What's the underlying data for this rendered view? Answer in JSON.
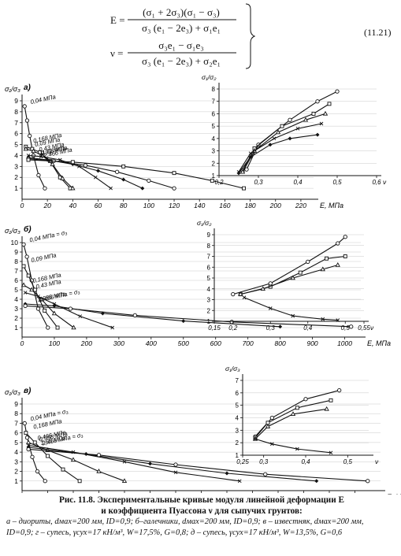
{
  "equation": {
    "lhs_e": "E =",
    "num_e": "(σ₁ + 2σ₃)(σ₁ − σ₃)",
    "den_e": "σ₃ (e₁ − 2e₃) + σ₁e₁",
    "lhs_v": "ν =",
    "num_v": "σ₃e₁ − σ₁e₃",
    "den_v": "σ₃ (e₁ − 2e₃) + σ₂e₁",
    "number": "(11.21)"
  },
  "caption": {
    "title": "Рис. 11.8. Экспериментальные кривые модуля линейной деформации E",
    "title2": "и коэффициента Пуассона ν для сыпучих грунтов:",
    "legend1": "а – диориты, dмах=200 мм, ID=0,9; б–галечники, dмах=200 мм, ID=0,9; в – известняк, dмах=200 мм,",
    "legend2": "ID=0,9; г – супесь, γсух=17 кН/м³, W=17,5%, G=0,8; д – супесь, γсух=17 кН/м³, W=13,5%, G=0,6"
  },
  "chart_data": [
    {
      "type": "line",
      "panel": "а)",
      "ylabel": "σ₁/σ₃",
      "xlabel": "E, МПа",
      "xlim": [
        0,
        230
      ],
      "ylim": [
        0,
        9
      ],
      "xticks": [
        "0",
        "20",
        "40",
        "60",
        "80",
        "100",
        "120",
        "140",
        "160",
        "180",
        "200",
        "220"
      ],
      "yticks": [
        "1",
        "2",
        "3",
        "4",
        "5",
        "6",
        "7",
        "8",
        "9"
      ],
      "series": [
        {
          "name": "0,04 МПа",
          "x": [
            2,
            4,
            6,
            9,
            13,
            18
          ],
          "y": [
            8.5,
            7.2,
            5.8,
            4.0,
            2.2,
            1.0
          ]
        },
        {
          "name": "0,168 МПа",
          "x": [
            3,
            8,
            14,
            22,
            30,
            38
          ],
          "y": [
            4.8,
            4.6,
            4.3,
            3.5,
            2.0,
            1.0
          ]
        },
        {
          "name": "0,09 МПа",
          "x": [
            3,
            9,
            16,
            24,
            32,
            40
          ],
          "y": [
            4.6,
            4.4,
            4.0,
            3.2,
            1.9,
            1.0
          ]
        },
        {
          "name": "0,43 МПа",
          "x": [
            5,
            15,
            30,
            45,
            58,
            70
          ],
          "y": [
            4.0,
            3.9,
            3.6,
            3.0,
            2.0,
            1.0
          ]
        },
        {
          "name": "0,93 МПа",
          "x": [
            5,
            20,
            40,
            60,
            80,
            95
          ],
          "y": [
            3.8,
            3.6,
            3.2,
            2.6,
            1.8,
            1.0
          ]
        },
        {
          "name": "1,68 МПа",
          "x": [
            5,
            25,
            50,
            75,
            100,
            120
          ],
          "y": [
            3.7,
            3.5,
            3.1,
            2.5,
            1.7,
            1.0
          ]
        },
        {
          "name": "2,466 МПа",
          "x": [
            5,
            40,
            80,
            120,
            150,
            175
          ],
          "y": [
            3.6,
            3.4,
            3.0,
            2.4,
            1.7,
            1.0
          ]
        }
      ]
    },
    {
      "type": "line",
      "panel": "а) inset",
      "ylabel": "σ₁/σ₂",
      "xlabel": "ν",
      "xlim": [
        0.2,
        0.6
      ],
      "ylim": [
        1,
        8
      ],
      "xticks": [
        "0,2",
        "0,3",
        "0,4",
        "0,5",
        "0,6"
      ],
      "yticks": [
        "1",
        "2",
        "3",
        "4",
        "5",
        "6",
        "7",
        "8"
      ],
      "series": [
        {
          "x": [
            0.27,
            0.3,
            0.38,
            0.45,
            0.5
          ],
          "y": [
            1.5,
            3.5,
            5.5,
            7,
            7.8
          ]
        },
        {
          "x": [
            0.26,
            0.29,
            0.36,
            0.44,
            0.48
          ],
          "y": [
            1.4,
            3.2,
            5.0,
            6.0,
            6.8
          ]
        },
        {
          "x": [
            0.26,
            0.29,
            0.35,
            0.42,
            0.47
          ],
          "y": [
            1.3,
            3.0,
            4.5,
            5.5,
            6.0
          ]
        },
        {
          "x": [
            0.25,
            0.28,
            0.34,
            0.4,
            0.46
          ],
          "y": [
            1.3,
            2.8,
            4.0,
            4.8,
            5.2
          ]
        },
        {
          "x": [
            0.25,
            0.28,
            0.33,
            0.38,
            0.45
          ],
          "y": [
            1.2,
            2.5,
            3.5,
            4.0,
            4.3
          ]
        }
      ]
    },
    {
      "type": "line",
      "panel": "б)",
      "ylabel": "σ₁/σ₃",
      "xlabel": "E, МПа",
      "xlim": [
        0,
        1050
      ],
      "ylim": [
        0,
        10
      ],
      "xticks": [
        "0",
        "100",
        "200",
        "300",
        "400",
        "500",
        "600",
        "700",
        "800",
        "900",
        "1000"
      ],
      "yticks": [
        "1",
        "2",
        "3",
        "4",
        "5",
        "6",
        "7",
        "8",
        "9",
        "10"
      ],
      "series": [
        {
          "name": "0,04 МПа = σ₃",
          "x": [
            5,
            15,
            30,
            50,
            80
          ],
          "y": [
            9.8,
            8.5,
            6,
            3,
            1
          ]
        },
        {
          "name": "0,09 МПа",
          "x": [
            5,
            20,
            40,
            70,
            110
          ],
          "y": [
            7.5,
            6.5,
            5,
            2.8,
            1
          ]
        },
        {
          "name": "0,168 МПа",
          "x": [
            5,
            30,
            60,
            100,
            160
          ],
          "y": [
            5.5,
            5.0,
            4.0,
            2.5,
            1
          ]
        },
        {
          "name": "0,43 МПа",
          "x": [
            10,
            50,
            100,
            180,
            280
          ],
          "y": [
            4.7,
            4.3,
            3.5,
            2.2,
            1
          ]
        },
        {
          "name": "1,686 МПа",
          "x": [
            10,
            100,
            250,
            500,
            800
          ],
          "y": [
            3.5,
            3.3,
            2.5,
            1.7,
            1.1
          ]
        },
        {
          "name": "2,466 МПа = σ₃",
          "x": [
            10,
            150,
            350,
            650,
            1020
          ],
          "y": [
            3.3,
            3.0,
            2.3,
            1.6,
            1.1
          ]
        }
      ]
    },
    {
      "type": "line",
      "panel": "б) inset",
      "ylabel": "σ₁/σ₂",
      "xlabel": "ν",
      "xlim": [
        0.15,
        0.55
      ],
      "ylim": [
        1,
        9
      ],
      "xticks": [
        "0,15",
        "0,2",
        "0,3",
        "0,4",
        "0,5",
        "0,55"
      ],
      "yticks": [
        "1",
        "2",
        "3",
        "4",
        "5",
        "6",
        "7",
        "8",
        "9"
      ],
      "series": [
        {
          "x": [
            0.2,
            0.3,
            0.4,
            0.48,
            0.5
          ],
          "y": [
            3.5,
            4.5,
            6.5,
            8.2,
            8.8
          ]
        },
        {
          "x": [
            0.22,
            0.3,
            0.38,
            0.45,
            0.5
          ],
          "y": [
            3.5,
            4.2,
            5.5,
            6.8,
            7.0
          ]
        },
        {
          "x": [
            0.22,
            0.28,
            0.36,
            0.44,
            0.48
          ],
          "y": [
            3.5,
            4.0,
            5.0,
            5.8,
            6.2
          ]
        },
        {
          "x": [
            0.23,
            0.3,
            0.36,
            0.44,
            0.48
          ],
          "y": [
            3.2,
            2.2,
            1.5,
            1.2,
            1.1
          ]
        }
      ]
    },
    {
      "type": "line",
      "panel": "в)",
      "ylabel": "σ₁/σ₃",
      "xlabel": "E, МПа",
      "xlim": [
        0,
        280
      ],
      "ylim": [
        0,
        9
      ],
      "xticks": [
        "0",
        "20",
        "40",
        "60",
        "80",
        "100",
        "120",
        "140",
        "160",
        "180",
        "200",
        "220",
        "240",
        "260"
      ],
      "yticks": [
        "1",
        "2",
        "3",
        "4",
        "5",
        "6",
        "7",
        "8",
        "9"
      ],
      "series": [
        {
          "name": "0,04 МПа = σ₃",
          "x": [
            2,
            4,
            8,
            12,
            18
          ],
          "y": [
            7.0,
            5.5,
            3.5,
            2.0,
            1.0
          ]
        },
        {
          "name": "0,168 МПа",
          "x": [
            3,
            10,
            20,
            32,
            45
          ],
          "y": [
            6.0,
            5.0,
            3.6,
            2.2,
            1.0
          ]
        },
        {
          "name": "0,466 МПа",
          "x": [
            5,
            20,
            40,
            60,
            80
          ],
          "y": [
            5.0,
            4.2,
            3.2,
            2.0,
            1.0
          ]
        },
        {
          "name": "0,998 МПа",
          "x": [
            5,
            40,
            80,
            120,
            170
          ],
          "y": [
            4.7,
            4.0,
            3.0,
            1.9,
            1.0
          ]
        },
        {
          "name": "1,66 МПа",
          "x": [
            5,
            50,
            100,
            160,
            230
          ],
          "y": [
            4.5,
            3.8,
            2.8,
            1.8,
            1.0
          ]
        },
        {
          "name": "2,466 МПа = σ₃",
          "x": [
            5,
            60,
            120,
            190,
            270
          ],
          "y": [
            4.3,
            3.7,
            2.7,
            1.7,
            1.0
          ]
        }
      ]
    },
    {
      "type": "line",
      "panel": "в) inset",
      "ylabel": "σ₁/σ₃",
      "xlabel": "ν",
      "xlim": [
        0.25,
        0.55
      ],
      "ylim": [
        1,
        7
      ],
      "xticks": [
        "0,25",
        "0,3",
        "0,4",
        "0,5"
      ],
      "yticks": [
        "1",
        "2",
        "3",
        "4",
        "5",
        "6",
        "7"
      ],
      "series": [
        {
          "x": [
            0.28,
            0.32,
            0.4,
            0.48
          ],
          "y": [
            2.5,
            4.0,
            5.5,
            6.2
          ]
        },
        {
          "x": [
            0.28,
            0.31,
            0.38,
            0.46
          ],
          "y": [
            2.4,
            3.6,
            4.8,
            5.4
          ]
        },
        {
          "x": [
            0.28,
            0.31,
            0.37,
            0.45
          ],
          "y": [
            2.3,
            3.3,
            4.3,
            4.7
          ]
        },
        {
          "x": [
            0.28,
            0.32,
            0.38,
            0.46
          ],
          "y": [
            2.3,
            1.9,
            1.5,
            1.2
          ]
        }
      ]
    }
  ]
}
